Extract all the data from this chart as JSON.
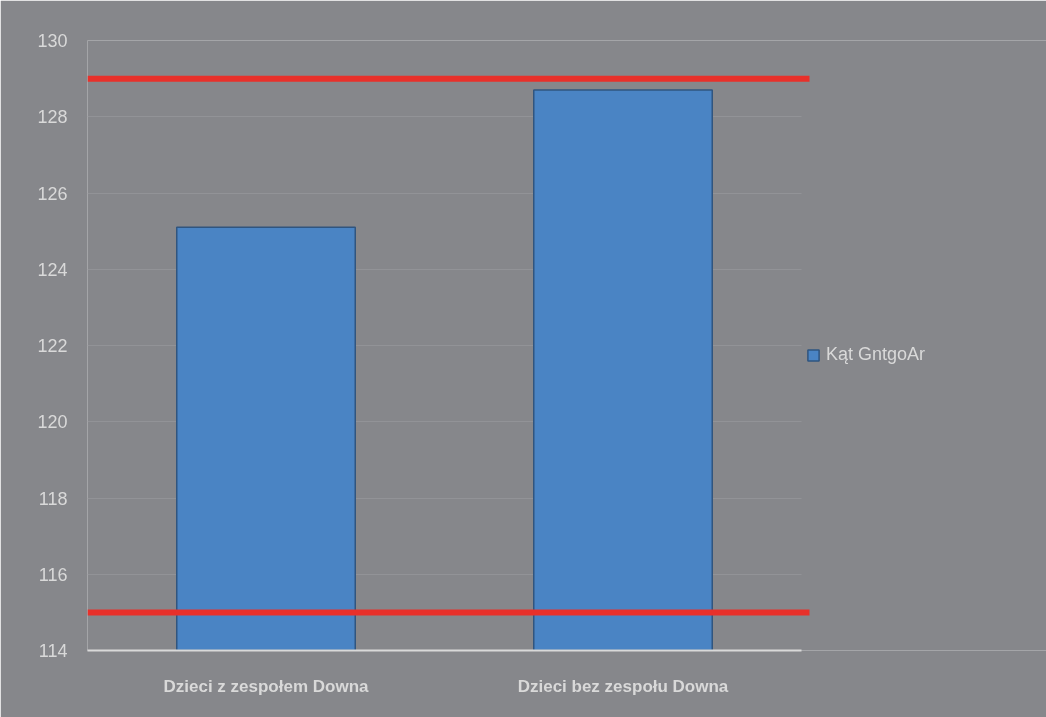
{
  "chart_data": {
    "type": "bar",
    "categories": [
      "Dzieci z zespołem Downa",
      "Dzieci bez zespołu Downa"
    ],
    "series": [
      {
        "name": "Kąt GntgoAr",
        "color": "#4a84c4",
        "values": [
          125.1,
          128.7
        ]
      }
    ],
    "ylim": [
      114,
      130
    ],
    "yticks": [
      114,
      116,
      118,
      120,
      122,
      124,
      126,
      128,
      130
    ],
    "grid": "y",
    "legend": "right",
    "ref_lines": [
      {
        "axis": "y",
        "value": 129,
        "color": "#e8302a"
      },
      {
        "axis": "y",
        "value": 115,
        "color": "#e8302a"
      }
    ]
  }
}
